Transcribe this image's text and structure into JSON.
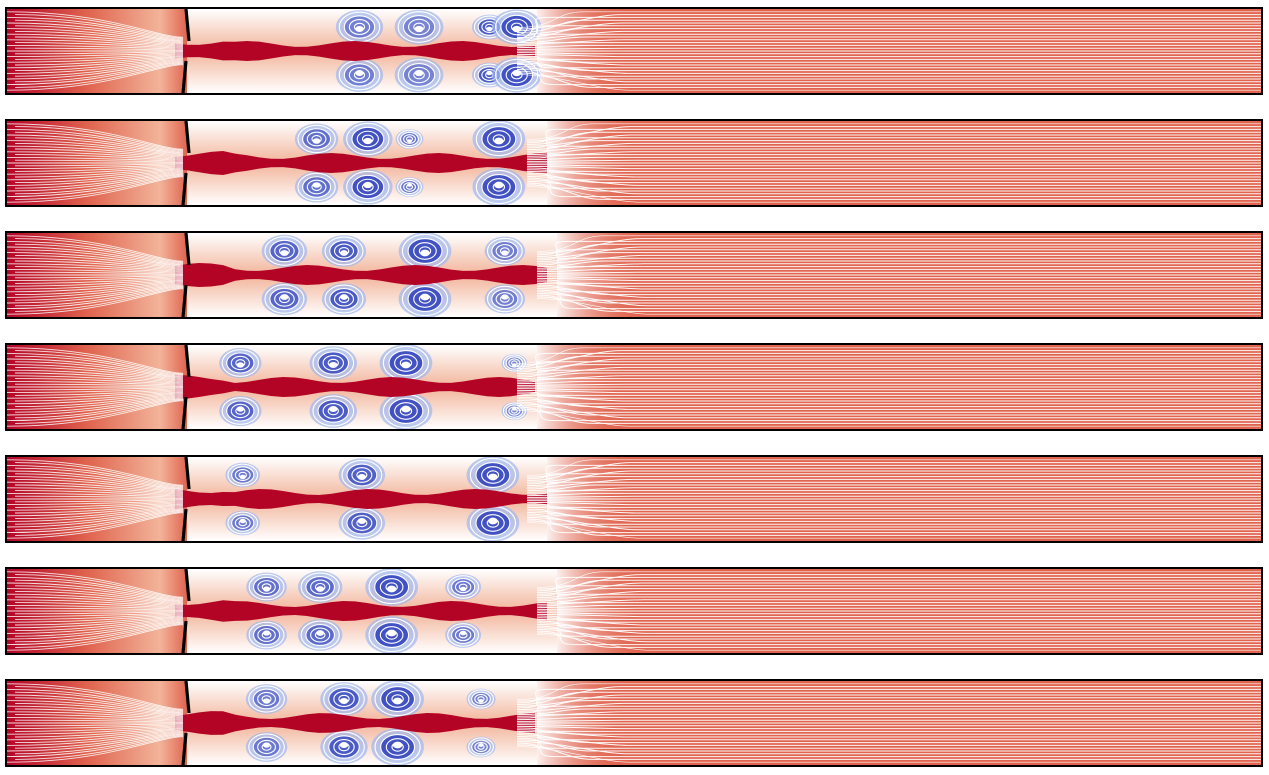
{
  "figure": {
    "description_free": true,
    "colormap": {
      "high": "#b40426",
      "mid": "#e0644f",
      "light": "#f2b49a",
      "neutral": "#ffffff",
      "low": "#3b4cc0",
      "low_light": "#9fb7ee"
    },
    "streamline_color": "#ffffff",
    "plate_color": "#000000",
    "panels": [
      {
        "vortices": [
          [
            0.268,
            0.35,
            0.55
          ],
          [
            0.318,
            0.37,
            0.5
          ],
          [
            0.377,
            0.22,
            0.9
          ],
          [
            0.4,
            0.3,
            1.0
          ]
        ]
      },
      {
        "vortices": [
          [
            0.232,
            0.3,
            0.7
          ],
          [
            0.275,
            0.3,
            1.0
          ],
          [
            0.31,
            0.2,
            0.6
          ],
          [
            0.385,
            0.32,
            1.0
          ]
        ]
      },
      {
        "vortices": [
          [
            0.205,
            0.3,
            0.8
          ],
          [
            0.255,
            0.28,
            0.9
          ],
          [
            0.323,
            0.32,
            1.0
          ],
          [
            0.39,
            0.3,
            0.55
          ]
        ]
      },
      {
        "vortices": [
          [
            0.168,
            0.28,
            0.8
          ],
          [
            0.246,
            0.3,
            0.9
          ],
          [
            0.307,
            0.32,
            1.0
          ],
          [
            0.398,
            0.2,
            0.45
          ]
        ]
      },
      {
        "vortices": [
          [
            0.17,
            0.25,
            0.6
          ],
          [
            0.27,
            0.3,
            0.85
          ],
          [
            0.38,
            0.32,
            1.0
          ]
        ]
      },
      {
        "vortices": [
          [
            0.19,
            0.28,
            0.7
          ],
          [
            0.235,
            0.3,
            0.75
          ],
          [
            0.295,
            0.32,
            1.0
          ],
          [
            0.355,
            0.26,
            0.6
          ]
        ]
      },
      {
        "vortices": [
          [
            0.19,
            0.3,
            0.6
          ],
          [
            0.255,
            0.3,
            0.9
          ],
          [
            0.3,
            0.32,
            1.0
          ],
          [
            0.37,
            0.22,
            0.5
          ]
        ]
      }
    ]
  }
}
